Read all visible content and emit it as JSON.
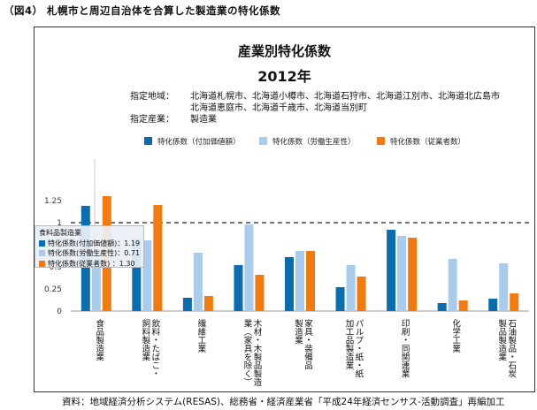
{
  "figure_caption": "（図4） 札幌市と周辺自治体を合算した製造業の特化係数",
  "source_note": "資料：地域経済分析システム(RESAS)、総務省・経済産業省「平成24年経済センサス-活動調査」再編加工",
  "region_label": "指定地域：",
  "region_line1": "北海道札幌市、北海道小樽市、北海道石狩市、北海道江別市、北海道北広島市",
  "region_line2": "北海道恵庭市、北海道千歳市、北海道当別町",
  "industry_label": "指定産業：",
  "industry_value": "製造業",
  "tooltip": {
    "title": "食料品製造業",
    "rows": [
      {
        "text": "特化係数(付加価値額)：1.19",
        "color": "#0a6db0"
      },
      {
        "text": "特化係数(労働生産性)：0.71",
        "color": "#a9cbec"
      },
      {
        "text": "特化係数(従業者数) ：1.30",
        "color": "#f47a0d"
      }
    ]
  },
  "chart_data": {
    "type": "bar",
    "title": "産業別特化係数",
    "subtitle": "2012年",
    "categories": [
      "食品製造業",
      "飲料・たばこ・飼料製造業",
      "繊維工業",
      "木材・木製品製造業（家具を除く）",
      "家具・装備品製造業",
      "パルプ・紙・紙加工品製造業",
      "印刷・同関連業",
      "化学工業",
      "石油製品・石炭製品製造業"
    ],
    "category_lines": [
      [
        "食品製造業"
      ],
      [
        "飲料・たばこ・",
        "飼料製造業"
      ],
      [
        "繊維工業"
      ],
      [
        "木材・木製品製造",
        "業（家具を除く）"
      ],
      [
        "家具・装備品",
        "製造業"
      ],
      [
        "パルプ・紙・紙",
        "加工品製造業"
      ],
      [
        "印刷・同関連業"
      ],
      [
        "化学工業"
      ],
      [
        "石油製品・石炭",
        "製品製造業"
      ]
    ],
    "series": [
      {
        "name": "特化係数（付加価値額）",
        "color": "#0a6db0",
        "values": [
          1.19,
          0.82,
          0.15,
          0.52,
          0.61,
          0.27,
          0.92,
          0.09,
          0.14
        ]
      },
      {
        "name": "特化係数（労働生産性）",
        "color": "#a9cbec",
        "values": [
          0.71,
          0.8,
          0.66,
          0.98,
          0.68,
          0.52,
          0.85,
          0.59,
          0.54
        ]
      },
      {
        "name": "特化係数（従業者数）",
        "color": "#f47a0d",
        "values": [
          1.3,
          1.2,
          0.17,
          0.41,
          0.68,
          0.39,
          0.83,
          0.12,
          0.2
        ]
      }
    ],
    "yticks": [
      "0",
      "0.25",
      "0.5",
      "0.75",
      "1",
      "1.25"
    ],
    "ylim": [
      0,
      1.4
    ],
    "reference_line": 1,
    "grid": false,
    "legend_position": "top"
  }
}
